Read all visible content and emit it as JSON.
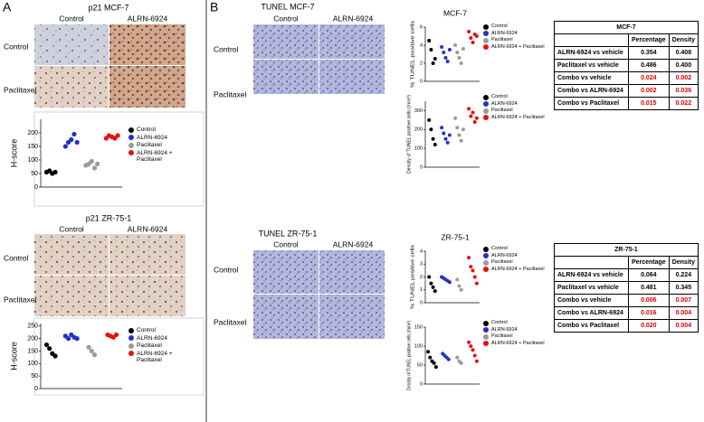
{
  "panel_a": {
    "letter": "A",
    "sections": [
      {
        "title": "p21 MCF-7",
        "columns": [
          "Control",
          "ALRN-6924"
        ],
        "rows": [
          "Control",
          "Paclitaxel"
        ]
      },
      {
        "title": "p21 ZR-75-1",
        "columns": [
          "Control",
          "ALRN-6924"
        ],
        "rows": [
          "Control",
          "Paclitaxel"
        ]
      }
    ]
  },
  "panel_b": {
    "letter": "B",
    "sections": [
      {
        "title": "TUNEL MCF-7",
        "columns": [
          "Control",
          "ALRN-6924"
        ],
        "rows": [
          "Control",
          "Paclitaxel"
        ]
      },
      {
        "title": "TUNEL ZR-75-1",
        "columns": [
          "Control",
          "ALRN-6924"
        ],
        "rows": [
          "Control",
          "Paclitaxel"
        ]
      }
    ]
  },
  "chart_data": [
    {
      "type": "dot",
      "y_label": "H-score",
      "ylim": [
        0,
        250
      ],
      "yticks": [
        0,
        50,
        100,
        150,
        200
      ],
      "series": [
        {
          "name": "Control",
          "color": "#000000",
          "values": [
            55,
            60,
            50,
            55
          ]
        },
        {
          "name": "ALRN-6924",
          "color": "#2430c8",
          "values": [
            150,
            165,
            175,
            195,
            165
          ]
        },
        {
          "name": "Paclitaxel",
          "color": "#9a9a9a",
          "values": [
            80,
            85,
            95,
            70,
            85
          ]
        },
        {
          "name": "ALRN-6924 + Paclitaxel",
          "color": "#e81010",
          "values": [
            180,
            190,
            185,
            180,
            190
          ]
        }
      ]
    },
    {
      "type": "dot",
      "y_label": "H-score",
      "ylim": [
        0,
        260
      ],
      "yticks": [
        0,
        50,
        100,
        150,
        200,
        250
      ],
      "series": [
        {
          "name": "Control",
          "color": "#000000",
          "values": [
            175,
            160,
            140,
            130
          ]
        },
        {
          "name": "ALRN-6924",
          "color": "#2430c8",
          "values": [
            210,
            200,
            215,
            205,
            200
          ]
        },
        {
          "name": "Paclitaxel",
          "color": "#9a9a9a",
          "values": [
            165,
            150,
            135
          ]
        },
        {
          "name": "ALRN-6924 + Paclitaxel",
          "color": "#e81010",
          "values": [
            215,
            210,
            205,
            215
          ]
        }
      ]
    },
    {
      "type": "dot",
      "title": "MCF-7",
      "y_label": "% TUNEL positive cells",
      "ylim": [
        0,
        6
      ],
      "yticks": [
        0,
        2,
        4,
        6
      ],
      "series": [
        {
          "name": "Control",
          "color": "#000000",
          "values": [
            4.5,
            3.5,
            2,
            2.5
          ]
        },
        {
          "name": "ALRN-6924",
          "color": "#2430c8",
          "values": [
            3.8,
            3.2,
            2.6,
            2.2,
            3.5
          ]
        },
        {
          "name": "Paclitaxel",
          "color": "#9a9a9a",
          "values": [
            4,
            3.2,
            2.6,
            2,
            3.6
          ]
        },
        {
          "name": "ALRN-6924 + Paclitaxel",
          "color": "#e81010",
          "values": [
            5.5,
            4.8,
            4.3,
            5.2,
            5
          ]
        }
      ]
    },
    {
      "type": "dot",
      "y_label": "Density of TUNEL positive cells (/mm²)",
      "ylim": [
        0,
        350
      ],
      "yticks": [
        0,
        100,
        200,
        300
      ],
      "series": [
        {
          "name": "Control",
          "color": "#000000",
          "values": [
            250,
            200,
            150,
            120
          ]
        },
        {
          "name": "ALRN-6924",
          "color": "#2430c8",
          "values": [
            210,
            180,
            150,
            130,
            170
          ]
        },
        {
          "name": "Paclitaxel",
          "color": "#9a9a9a",
          "values": [
            260,
            210,
            170,
            140,
            200
          ]
        },
        {
          "name": "ALRN-6924 + Paclitaxel",
          "color": "#e81010",
          "values": [
            310,
            270,
            290,
            240,
            260
          ]
        }
      ]
    },
    {
      "type": "dot",
      "title": "ZR-75-1",
      "y_label": "% TUNEL positive cells",
      "ylim": [
        0,
        4
      ],
      "yticks": [
        0,
        1,
        2,
        3,
        4
      ],
      "series": [
        {
          "name": "Control",
          "color": "#000000",
          "values": [
            2,
            1.5,
            1.2,
            0.9
          ]
        },
        {
          "name": "ALRN-6924",
          "color": "#2430c8",
          "values": [
            2,
            1.9,
            1.8,
            1.7,
            1.6
          ]
        },
        {
          "name": "Paclitaxel",
          "color": "#9a9a9a",
          "values": [
            1.8,
            1.3,
            1
          ]
        },
        {
          "name": "ALRN-6924 + Paclitaxel",
          "color": "#e81010",
          "values": [
            3.5,
            2.8,
            2.5,
            2,
            1.5
          ]
        }
      ]
    },
    {
      "type": "dot",
      "y_label": "Density of TUNEL positive cells (/mm²)",
      "ylim": [
        0,
        150
      ],
      "yticks": [
        0,
        50,
        100,
        150
      ],
      "series": [
        {
          "name": "Control",
          "color": "#000000",
          "values": [
            85,
            70,
            60,
            55,
            45
          ]
        },
        {
          "name": "ALRN-6924",
          "color": "#2430c8",
          "values": [
            80,
            75,
            70,
            65
          ]
        },
        {
          "name": "Paclitaxel",
          "color": "#9a9a9a",
          "values": [
            70,
            60,
            55
          ]
        },
        {
          "name": "ALRN-6924 + Paclitaxel",
          "color": "#e81010",
          "values": [
            110,
            100,
            90,
            75,
            60
          ]
        }
      ]
    }
  ],
  "tables": [
    {
      "title": "MCF-7",
      "columns": [
        "Percentage",
        "Density"
      ],
      "rows": [
        {
          "label": "ALRN-6924 vs vehicle",
          "cells": [
            "0.354",
            "0.408"
          ]
        },
        {
          "label": "Paclitaxel vs vehicle",
          "cells": [
            "0.486",
            "0.400"
          ]
        },
        {
          "label": "Combo vs vehicle",
          "cells": [
            "0.024",
            "0.002"
          ],
          "color": "#e00000"
        },
        {
          "label": "Combo vs ALRN-6924",
          "cells": [
            "0.002",
            "0.036"
          ],
          "color": "#e00000"
        },
        {
          "label": "Combo vs Paclitaxel",
          "cells": [
            "0.015",
            "0.022"
          ],
          "color": "#e00000"
        }
      ]
    },
    {
      "title": "ZR-75-1",
      "columns": [
        "Percentage",
        "Density"
      ],
      "rows": [
        {
          "label": "ALRN-6924 vs vehicle",
          "cells": [
            "0.064",
            "0.224"
          ]
        },
        {
          "label": "Paclitaxel vs vehicle",
          "cells": [
            "0.481",
            "0.345"
          ]
        },
        {
          "label": "Combo vs vehicle",
          "cells": [
            "0.006",
            "0.007"
          ],
          "color": "#e00000"
        },
        {
          "label": "Combo vs ALRN-6924",
          "cells": [
            "0.016",
            "0.004"
          ],
          "color": "#e00000"
        },
        {
          "label": "Combo vs Paclitaxel",
          "cells": [
            "0.020",
            "0.004"
          ],
          "color": "#e00000"
        }
      ]
    }
  ]
}
